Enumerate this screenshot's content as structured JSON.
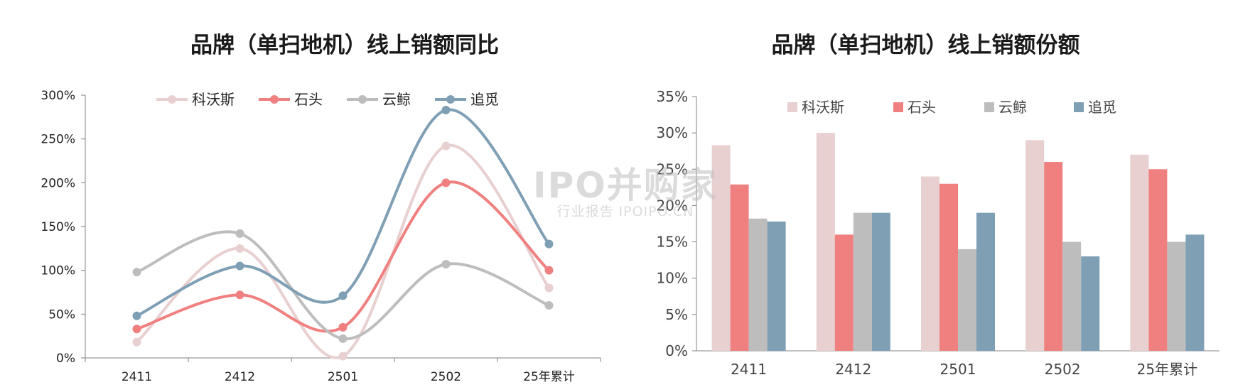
{
  "watermark": {
    "main": "IPO并购家",
    "sub": "行业报告 IPOIPO.CN"
  },
  "colors": {
    "kewosi": "#e8cfd0",
    "shitou": "#f08080",
    "yunjing": "#bdbdbd",
    "zhuimi": "#7f9fb5"
  },
  "chart_data": [
    {
      "type": "line",
      "title": "品牌（单扫地机）线上销额同比",
      "categories": [
        "2411",
        "2412",
        "2501",
        "2502",
        "25年累计"
      ],
      "y_ticks": [
        "0%",
        "50%",
        "100%",
        "150%",
        "200%",
        "250%",
        "300%"
      ],
      "ylim": [
        0,
        300
      ],
      "smooth": true,
      "legend_position": "top",
      "series": [
        {
          "name": "科沃斯",
          "values": [
            18,
            125,
            2,
            242,
            80
          ]
        },
        {
          "name": "石头",
          "values": [
            33,
            72,
            35,
            200,
            100
          ]
        },
        {
          "name": "云鲸",
          "values": [
            98,
            142,
            22,
            107,
            60
          ]
        },
        {
          "name": "追觅",
          "values": [
            48,
            105,
            71,
            283,
            130
          ]
        }
      ]
    },
    {
      "type": "bar",
      "title": "品牌（单扫地机）线上销额份额",
      "categories": [
        "2411",
        "2412",
        "2501",
        "2502",
        "25年累计"
      ],
      "y_ticks": [
        "0%",
        "5%",
        "10%",
        "15%",
        "20%",
        "25%",
        "30%",
        "35%"
      ],
      "ylim": [
        0,
        35
      ],
      "legend_position": "top",
      "series": [
        {
          "name": "科沃斯",
          "values": [
            28.3,
            30.0,
            24.0,
            29.0,
            27.0
          ]
        },
        {
          "name": "石头",
          "values": [
            22.9,
            16.0,
            23.0,
            26.0,
            25.0
          ]
        },
        {
          "name": "云鲸",
          "values": [
            18.2,
            19.0,
            14.0,
            15.0,
            15.0
          ]
        },
        {
          "name": "追觅",
          "values": [
            17.8,
            19.0,
            19.0,
            13.0,
            16.0
          ]
        }
      ]
    }
  ]
}
